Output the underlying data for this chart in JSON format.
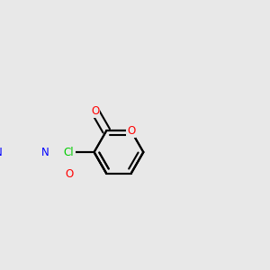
{
  "bg_color": "#e8e8e8",
  "bond_color": "#000000",
  "bond_width": 1.5,
  "atom_colors": {
    "N": "#0000ff",
    "O": "#ff0000",
    "Cl": "#00cc00",
    "C": "#000000"
  },
  "font_size_atom": 8.5
}
